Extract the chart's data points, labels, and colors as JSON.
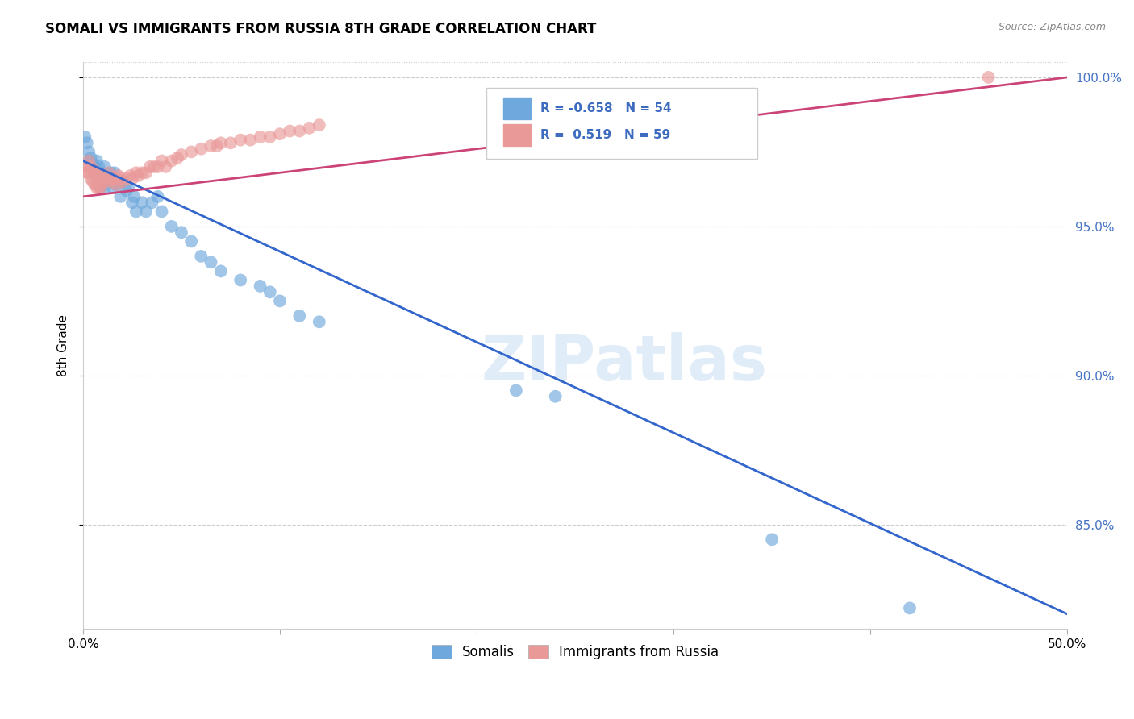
{
  "title": "SOMALI VS IMMIGRANTS FROM RUSSIA 8TH GRADE CORRELATION CHART",
  "source": "Source: ZipAtlas.com",
  "ylabel": "8th Grade",
  "x_min": 0.0,
  "x_max": 0.5,
  "y_min": 0.815,
  "y_max": 1.005,
  "y_ticks": [
    0.85,
    0.9,
    0.95,
    1.0
  ],
  "y_tick_labels": [
    "85.0%",
    "90.0%",
    "95.0%",
    "100.0%"
  ],
  "blue_R": -0.658,
  "blue_N": 54,
  "pink_R": 0.519,
  "pink_N": 59,
  "blue_color": "#6fa8dc",
  "pink_color": "#ea9999",
  "blue_line_color": "#3366cc",
  "pink_line_color": "#cc4477",
  "watermark": "ZIPatlas",
  "legend_label_blue": "Somalis",
  "legend_label_pink": "Immigrants from Russia",
  "blue_x": [
    0.001,
    0.002,
    0.003,
    0.003,
    0.004,
    0.005,
    0.005,
    0.006,
    0.006,
    0.007,
    0.007,
    0.008,
    0.008,
    0.009,
    0.009,
    0.01,
    0.01,
    0.011,
    0.011,
    0.012,
    0.013,
    0.014,
    0.015,
    0.016,
    0.017,
    0.018,
    0.019,
    0.02,
    0.022,
    0.023,
    0.025,
    0.026,
    0.027,
    0.03,
    0.032,
    0.035,
    0.038,
    0.04,
    0.045,
    0.05,
    0.055,
    0.06,
    0.065,
    0.07,
    0.08,
    0.09,
    0.095,
    0.1,
    0.11,
    0.12,
    0.22,
    0.24,
    0.35,
    0.42
  ],
  "blue_y": [
    0.98,
    0.978,
    0.975,
    0.972,
    0.973,
    0.971,
    0.969,
    0.97,
    0.968,
    0.972,
    0.967,
    0.97,
    0.965,
    0.968,
    0.963,
    0.967,
    0.965,
    0.97,
    0.963,
    0.966,
    0.966,
    0.968,
    0.963,
    0.968,
    0.964,
    0.965,
    0.96,
    0.965,
    0.962,
    0.963,
    0.958,
    0.96,
    0.955,
    0.958,
    0.955,
    0.958,
    0.96,
    0.955,
    0.95,
    0.948,
    0.945,
    0.94,
    0.938,
    0.935,
    0.932,
    0.93,
    0.928,
    0.925,
    0.92,
    0.918,
    0.895,
    0.893,
    0.845,
    0.822
  ],
  "pink_x": [
    0.001,
    0.002,
    0.002,
    0.003,
    0.003,
    0.004,
    0.004,
    0.005,
    0.005,
    0.006,
    0.006,
    0.007,
    0.007,
    0.008,
    0.008,
    0.009,
    0.009,
    0.01,
    0.011,
    0.012,
    0.013,
    0.014,
    0.015,
    0.016,
    0.017,
    0.018,
    0.019,
    0.02,
    0.022,
    0.024,
    0.025,
    0.027,
    0.028,
    0.03,
    0.032,
    0.034,
    0.036,
    0.038,
    0.04,
    0.042,
    0.045,
    0.048,
    0.05,
    0.055,
    0.06,
    0.065,
    0.068,
    0.07,
    0.075,
    0.08,
    0.085,
    0.09,
    0.095,
    0.1,
    0.105,
    0.11,
    0.115,
    0.12,
    0.46
  ],
  "pink_y": [
    0.97,
    0.97,
    0.968,
    0.972,
    0.968,
    0.97,
    0.966,
    0.969,
    0.965,
    0.968,
    0.964,
    0.968,
    0.963,
    0.967,
    0.963,
    0.966,
    0.963,
    0.965,
    0.966,
    0.965,
    0.968,
    0.966,
    0.965,
    0.966,
    0.964,
    0.967,
    0.966,
    0.965,
    0.966,
    0.967,
    0.966,
    0.968,
    0.967,
    0.968,
    0.968,
    0.97,
    0.97,
    0.97,
    0.972,
    0.97,
    0.972,
    0.973,
    0.974,
    0.975,
    0.976,
    0.977,
    0.977,
    0.978,
    0.978,
    0.979,
    0.979,
    0.98,
    0.98,
    0.981,
    0.982,
    0.982,
    0.983,
    0.984,
    1.0
  ],
  "blue_line_x0": 0.0,
  "blue_line_y0": 0.972,
  "blue_line_x1": 0.5,
  "blue_line_y1": 0.82,
  "pink_line_x0": 0.0,
  "pink_line_y0": 0.96,
  "pink_line_x1": 0.5,
  "pink_line_y1": 1.0
}
